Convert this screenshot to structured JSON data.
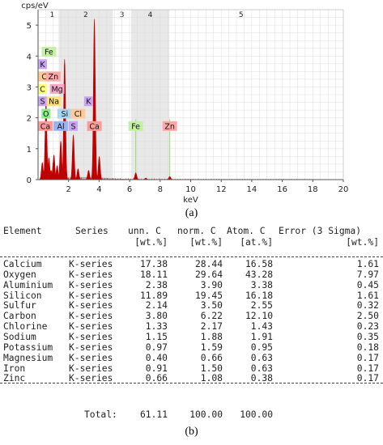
{
  "panel_a": {
    "caption": "(a)",
    "y_unit": "cps/eV",
    "x_label": "keV"
  },
  "panel_b": {
    "caption": "(b)"
  },
  "colors": {
    "spectrum": "#c00000",
    "grid": "#dddddd",
    "shade": "#e8e8e8",
    "line_marker": "#99dd66",
    "bg_fill": "#9a9a9a"
  },
  "chart_data": {
    "type": "line",
    "title": "",
    "xlabel": "keV",
    "ylabel": "cps/eV",
    "xlim": [
      0,
      20
    ],
    "ylim": [
      0,
      5.5
    ],
    "x_ticks": [
      2,
      4,
      6,
      8,
      10,
      12,
      14,
      16,
      18,
      20
    ],
    "y_ticks": [
      0,
      1,
      2,
      3,
      4,
      5
    ],
    "grid": true,
    "regions": [
      {
        "label": "1",
        "start": 0.5,
        "end": 1.35
      },
      {
        "label": "2",
        "start": 1.35,
        "end": 4.9
      },
      {
        "label": "3",
        "start": 4.9,
        "end": 6.1
      },
      {
        "label": "4",
        "start": 6.1,
        "end": 8.6
      },
      {
        "label": "5",
        "start": 8.6,
        "end": 18.0
      }
    ],
    "peaks": [
      {
        "x": 0.28,
        "y": 0.55
      },
      {
        "x": 0.52,
        "y": 2.5
      },
      {
        "x": 0.71,
        "y": 0.7
      },
      {
        "x": 0.85,
        "y": 0.3
      },
      {
        "x": 1.01,
        "y": 0.6
      },
      {
        "x": 1.04,
        "y": 0.8
      },
      {
        "x": 1.25,
        "y": 0.45
      },
      {
        "x": 1.49,
        "y": 1.25
      },
      {
        "x": 1.74,
        "y": 3.9
      },
      {
        "x": 2.31,
        "y": 1.45
      },
      {
        "x": 2.62,
        "y": 0.35
      },
      {
        "x": 3.31,
        "y": 0.3
      },
      {
        "x": 3.69,
        "y": 5.2
      },
      {
        "x": 4.01,
        "y": 0.75
      },
      {
        "x": 6.4,
        "y": 0.22
      },
      {
        "x": 7.06,
        "y": 0.05
      },
      {
        "x": 8.63,
        "y": 0.1
      }
    ],
    "element_labels": [
      {
        "text": "Fe",
        "x": 0.71,
        "row": 1,
        "color": "#c4f0a6"
      },
      {
        "text": "K",
        "x": 0.26,
        "row": 2,
        "color": "#c9a4f2"
      },
      {
        "text": "Cl",
        "x": 0.18,
        "row": 3,
        "color": "#ffc99a"
      },
      {
        "text": "Zn",
        "x": 1.0,
        "row": 3,
        "color": "#ffa8a8"
      },
      {
        "text": "C",
        "x": 0.28,
        "row": 4,
        "color": "#ffff77"
      },
      {
        "text": "Mg",
        "x": 1.25,
        "row": 4,
        "color": "#f7a8c8"
      },
      {
        "text": "S",
        "x": 0.16,
        "row": 5,
        "color": "#c9a4f2"
      },
      {
        "text": "Na",
        "x": 1.04,
        "row": 5,
        "color": "#ffe07a"
      },
      {
        "text": "K",
        "x": 3.31,
        "row": 5,
        "color": "#c9a4f2"
      },
      {
        "text": "O",
        "x": 0.52,
        "row": 6,
        "color": "#88ee88"
      },
      {
        "text": "Si",
        "x": 1.74,
        "row": 6,
        "color": "#a8d8f0"
      },
      {
        "text": "Cl",
        "x": 2.62,
        "row": 6,
        "color": "#ffc99a"
      },
      {
        "text": "Ca",
        "x": 0.1,
        "row": 7,
        "color": "#ff9a9a"
      },
      {
        "text": "Al",
        "x": 1.49,
        "row": 7,
        "color": "#9ab4f0"
      },
      {
        "text": "S",
        "x": 2.31,
        "row": 7,
        "color": "#c9a4f2"
      },
      {
        "text": "Ca",
        "x": 3.69,
        "row": 7,
        "color": "#ff9a9a"
      },
      {
        "text": "Fe",
        "x": 6.4,
        "row": 7,
        "color": "#c4f0a6"
      },
      {
        "text": "Zn",
        "x": 8.63,
        "row": 7,
        "color": "#ffa8a8"
      }
    ],
    "marker_lines": [
      3.69,
      6.4,
      8.63
    ],
    "table": {
      "headers_line1": [
        "Element",
        "Series",
        "unn. C",
        "norm. C",
        "Atom. C",
        "Error (3 Sigma)"
      ],
      "headers_line2": [
        "[wt.%]",
        "[wt.%]",
        "[at.%]",
        "[wt.%]"
      ],
      "rows": [
        [
          "Calcium",
          "K-series",
          "17.38",
          "28.44",
          "16.58",
          "1.61"
        ],
        [
          "Oxygen",
          "K-series",
          "18.11",
          "29.64",
          "43.28",
          "7.97"
        ],
        [
          "Aluminium",
          "K-series",
          "2.38",
          "3.90",
          "3.38",
          "0.45"
        ],
        [
          "Silicon",
          "K-series",
          "11.89",
          "19.45",
          "16.18",
          "1.61"
        ],
        [
          "Sulfur",
          "K-series",
          "2.14",
          "3.50",
          "2.55",
          "0.32"
        ],
        [
          "Carbon",
          "K-series",
          "3.80",
          "6.22",
          "12.10",
          "2.50"
        ],
        [
          "Chlorine",
          "K-series",
          "1.33",
          "2.17",
          "1.43",
          "0.23"
        ],
        [
          "Sodium",
          "K-series",
          "1.15",
          "1.88",
          "1.91",
          "0.35"
        ],
        [
          "Potassium",
          "K-series",
          "0.97",
          "1.59",
          "0.95",
          "0.18"
        ],
        [
          "Magnesium",
          "K-series",
          "0.40",
          "0.66",
          "0.63",
          "0.17"
        ],
        [
          "Iron",
          "K-series",
          "0.91",
          "1.50",
          "0.63",
          "0.17"
        ],
        [
          "Zinc",
          "K-series",
          "0.66",
          "1.08",
          "0.38",
          "0.17"
        ]
      ],
      "total": {
        "label": "Total:",
        "unn": "61.11",
        "norm": "100.00",
        "atom": "100.00"
      }
    }
  }
}
